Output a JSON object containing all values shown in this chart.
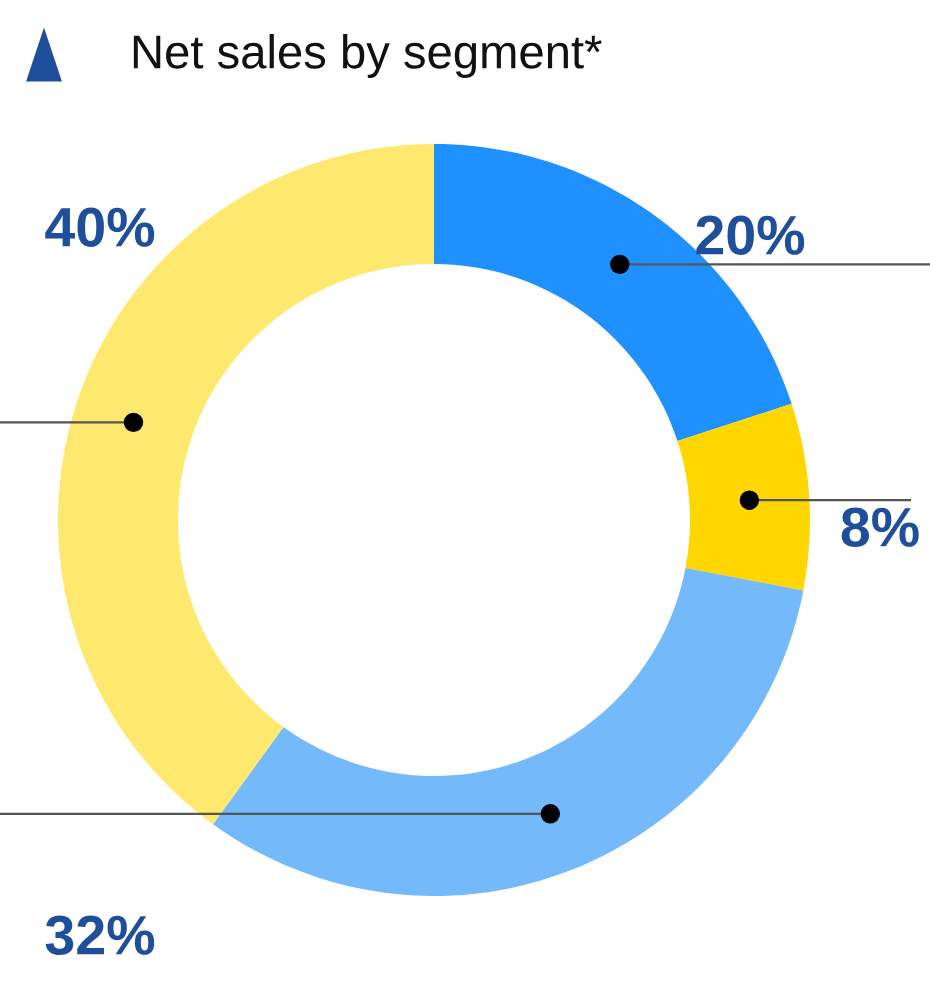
{
  "chart_data": {
    "type": "donut",
    "title": "Net sales by segment*",
    "categories": [
      null,
      null,
      null,
      null
    ],
    "values": [
      20,
      8,
      32,
      40
    ],
    "colors": [
      "#1e90ff",
      "#ffd700",
      "#74b9f9",
      "#ffe86e"
    ],
    "value_labels": [
      "20%",
      "8%",
      "32%",
      "40%"
    ]
  }
}
